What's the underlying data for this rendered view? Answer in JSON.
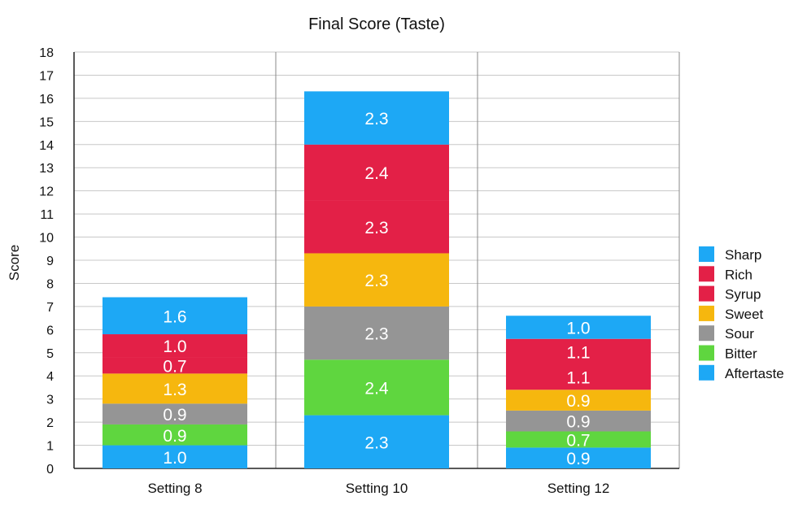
{
  "chart_data": {
    "type": "bar",
    "stacked": true,
    "title": "Final Score (Taste)",
    "xlabel": "",
    "ylabel": "Score",
    "ylim": [
      0,
      18
    ],
    "yticks": [
      0,
      1,
      2,
      3,
      4,
      5,
      6,
      7,
      8,
      9,
      10,
      11,
      12,
      13,
      14,
      15,
      16,
      17,
      18
    ],
    "grid": true,
    "legend_position": "right",
    "categories": [
      "Setting 8",
      "Setting 10",
      "Setting 12"
    ],
    "series": [
      {
        "name": "Aftertaste",
        "color": "#1DA8F5",
        "values": [
          1.0,
          2.3,
          0.9
        ],
        "labels": [
          "1.0",
          "2.3",
          "0.9"
        ]
      },
      {
        "name": "Bitter",
        "color": "#5FD63F",
        "values": [
          0.9,
          2.4,
          0.7
        ],
        "labels": [
          "0.9",
          "2.4",
          "0.7"
        ]
      },
      {
        "name": "Sour",
        "color": "#959595",
        "values": [
          0.9,
          2.3,
          0.9
        ],
        "labels": [
          "0.9",
          "2.3",
          "0.9"
        ]
      },
      {
        "name": "Sweet",
        "color": "#F6B70E",
        "values": [
          1.3,
          2.3,
          0.9
        ],
        "labels": [
          "1.3",
          "2.3",
          "0.9"
        ]
      },
      {
        "name": "Syrup",
        "color": "#E32047",
        "values": [
          0.7,
          2.3,
          1.1
        ],
        "labels": [
          "0.7",
          "2.3",
          "1.1"
        ]
      },
      {
        "name": "Rich",
        "color": "#E32047",
        "values": [
          1.0,
          2.4,
          1.1
        ],
        "labels": [
          "1.0",
          "2.4",
          "1.1"
        ]
      },
      {
        "name": "Sharp",
        "color": "#1DA8F5",
        "values": [
          1.6,
          2.3,
          1.0
        ],
        "labels": [
          "1.6",
          "2.3",
          "1.0"
        ]
      }
    ],
    "legend": [
      "Sharp",
      "Rich",
      "Syrup",
      "Sweet",
      "Sour",
      "Bitter",
      "Aftertaste"
    ]
  }
}
